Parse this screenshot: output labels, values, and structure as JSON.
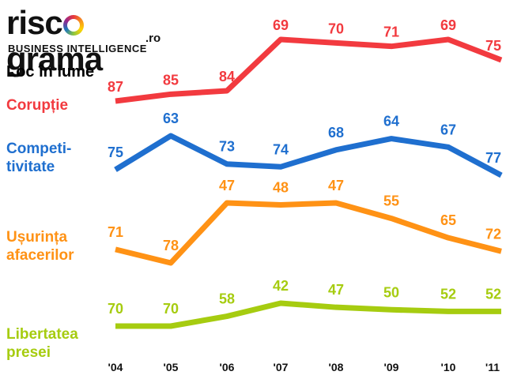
{
  "logo": {
    "brand_prefix": "risc",
    "brand_letter": "o",
    "brand_suffix": "grama",
    "domain": ".ro",
    "tagline": "BUSINESS INTELLIGENCE"
  },
  "subtitle": "Loc în lume",
  "chart_data": {
    "type": "line",
    "categories": [
      "'04",
      "'05",
      "'06",
      "'07",
      "'08",
      "'09",
      "'10",
      "'11"
    ],
    "series": [
      {
        "name": "Corupție",
        "label_lines": [
          "Corupție"
        ],
        "color": "#f23a3f",
        "values": [
          87,
          85,
          84,
          69,
          70,
          71,
          69,
          75
        ]
      },
      {
        "name": "Competitivitate",
        "label_lines": [
          "Competi-",
          "tivitate"
        ],
        "color": "#1f6fcf",
        "values": [
          75,
          63,
          73,
          74,
          68,
          64,
          67,
          77
        ]
      },
      {
        "name": "Ușurința afacerilor",
        "label_lines": [
          "Ușurința",
          "afacerilor"
        ],
        "color": "#ff9215",
        "values": [
          71,
          78,
          47,
          48,
          47,
          55,
          65,
          72
        ]
      },
      {
        "name": "Libertatea presei",
        "label_lines": [
          "Libertatea",
          "presei"
        ],
        "color": "#a6cc10",
        "values": [
          70,
          70,
          58,
          42,
          47,
          50,
          52,
          52
        ]
      }
    ]
  }
}
